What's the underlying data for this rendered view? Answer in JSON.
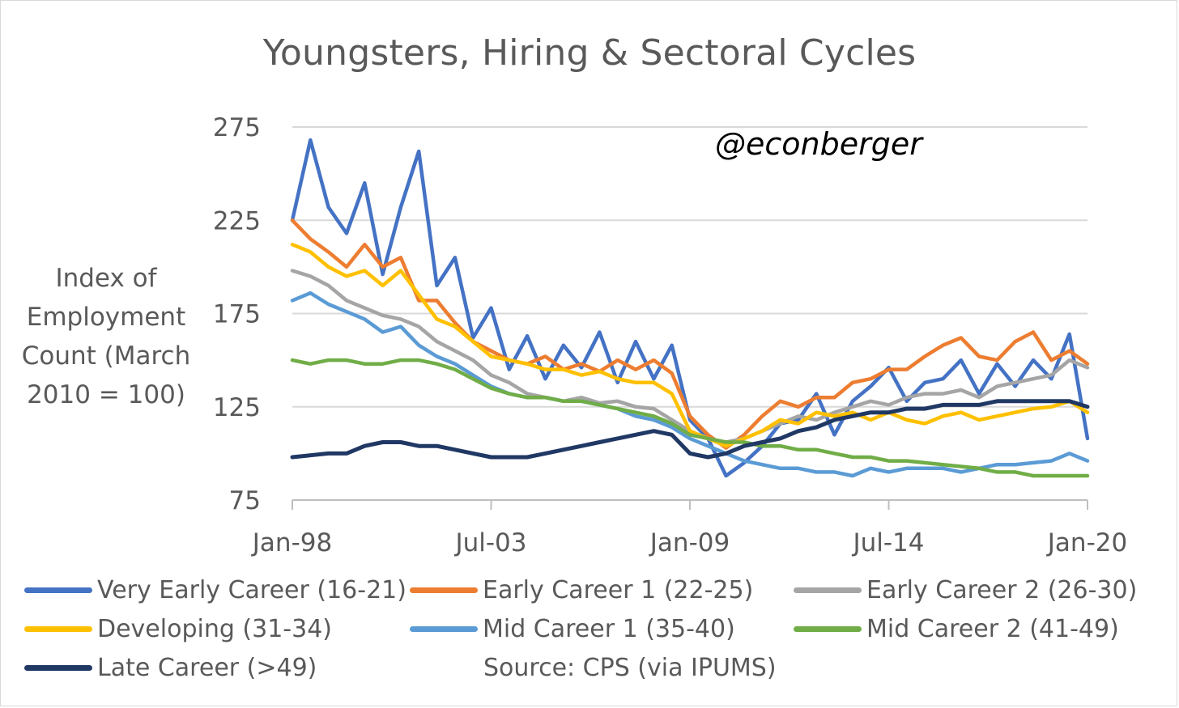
{
  "chart_data": {
    "type": "line",
    "title": "Youngsters, Hiring & Sectoral Cycles",
    "ylabel": "Index of Employment Count (March 2010 = 100)",
    "xlabel": "",
    "ylim": [
      75,
      275
    ],
    "yticks": [
      75,
      125,
      175,
      225,
      275
    ],
    "xticks": [
      "Jan-98",
      "Jul-03",
      "Jan-09",
      "Jul-14",
      "Jan-20"
    ],
    "x_range": [
      "1998-01",
      "2020-01"
    ],
    "grid": "horizontal",
    "legend_position": "bottom",
    "annotation": "@econberger",
    "source": "Source: CPS (via IPUMS)",
    "x": [
      "1998-01",
      "1998-07",
      "1999-01",
      "1999-07",
      "2000-01",
      "2000-07",
      "2001-01",
      "2001-07",
      "2002-01",
      "2002-07",
      "2003-01",
      "2003-07",
      "2004-01",
      "2004-07",
      "2005-01",
      "2005-07",
      "2006-01",
      "2006-07",
      "2007-01",
      "2007-07",
      "2008-01",
      "2008-07",
      "2009-01",
      "2009-07",
      "2010-01",
      "2010-07",
      "2011-01",
      "2011-07",
      "2012-01",
      "2012-07",
      "2013-01",
      "2013-07",
      "2014-01",
      "2014-07",
      "2015-01",
      "2015-07",
      "2016-01",
      "2016-07",
      "2017-01",
      "2017-07",
      "2018-01",
      "2018-07",
      "2019-01",
      "2019-07",
      "2020-01"
    ],
    "series": [
      {
        "name": "Very Early Career (16-21)",
        "color": "#4472C4",
        "values": [
          225,
          268,
          232,
          218,
          245,
          196,
          232,
          262,
          190,
          205,
          162,
          178,
          145,
          163,
          140,
          158,
          146,
          165,
          138,
          160,
          140,
          158,
          118,
          108,
          88,
          95,
          104,
          116,
          118,
          132,
          110,
          128,
          136,
          146,
          128,
          138,
          140,
          150,
          132,
          148,
          136,
          150,
          140,
          164,
          108
        ]
      },
      {
        "name": "Early Career 1 (22-25)",
        "color": "#ED7D31",
        "values": [
          225,
          215,
          208,
          200,
          212,
          200,
          205,
          182,
          182,
          170,
          160,
          155,
          150,
          148,
          152,
          145,
          148,
          144,
          150,
          145,
          150,
          143,
          120,
          110,
          103,
          110,
          120,
          128,
          125,
          130,
          130,
          138,
          140,
          145,
          145,
          152,
          158,
          162,
          152,
          150,
          160,
          165,
          150,
          155,
          148
        ]
      },
      {
        "name": "Early Career 2 (26-30)",
        "color": "#A5A5A5",
        "values": [
          198,
          195,
          190,
          182,
          178,
          174,
          172,
          168,
          160,
          155,
          150,
          142,
          138,
          132,
          130,
          128,
          130,
          127,
          128,
          125,
          124,
          118,
          112,
          108,
          106,
          108,
          112,
          116,
          120,
          118,
          122,
          125,
          128,
          126,
          130,
          132,
          132,
          134,
          130,
          136,
          138,
          140,
          142,
          150,
          146
        ]
      },
      {
        "name": "Developing (31-34)",
        "color": "#FFC000",
        "values": [
          212,
          208,
          200,
          195,
          198,
          190,
          198,
          185,
          172,
          168,
          160,
          152,
          150,
          148,
          145,
          145,
          142,
          144,
          140,
          138,
          138,
          132,
          112,
          108,
          104,
          108,
          112,
          118,
          116,
          122,
          120,
          122,
          118,
          122,
          118,
          116,
          120,
          122,
          118,
          120,
          122,
          124,
          125,
          128,
          122
        ]
      },
      {
        "name": "Mid Career 1 (35-40)",
        "color": "#5B9BD5",
        "values": [
          182,
          186,
          180,
          176,
          172,
          165,
          168,
          158,
          152,
          148,
          142,
          136,
          132,
          130,
          130,
          128,
          128,
          126,
          124,
          120,
          118,
          114,
          108,
          104,
          100,
          96,
          94,
          92,
          92,
          90,
          90,
          88,
          92,
          90,
          92,
          92,
          92,
          90,
          92,
          94,
          94,
          95,
          96,
          100,
          96
        ]
      },
      {
        "name": "Mid Career 2 (41-49)",
        "color": "#70AD47",
        "values": [
          150,
          148,
          150,
          150,
          148,
          148,
          150,
          150,
          148,
          145,
          140,
          135,
          132,
          130,
          130,
          128,
          128,
          126,
          124,
          122,
          120,
          116,
          110,
          108,
          106,
          106,
          104,
          104,
          102,
          102,
          100,
          98,
          98,
          96,
          96,
          95,
          94,
          93,
          92,
          90,
          90,
          88,
          88,
          88,
          88
        ]
      },
      {
        "name": "Late Career (>49)",
        "color": "#203864",
        "values": [
          98,
          99,
          100,
          100,
          104,
          106,
          106,
          104,
          104,
          102,
          100,
          98,
          98,
          98,
          100,
          102,
          104,
          106,
          108,
          110,
          112,
          110,
          100,
          98,
          100,
          104,
          106,
          108,
          112,
          114,
          118,
          120,
          122,
          122,
          124,
          124,
          126,
          126,
          126,
          128,
          128,
          128,
          128,
          128,
          125
        ]
      }
    ]
  }
}
